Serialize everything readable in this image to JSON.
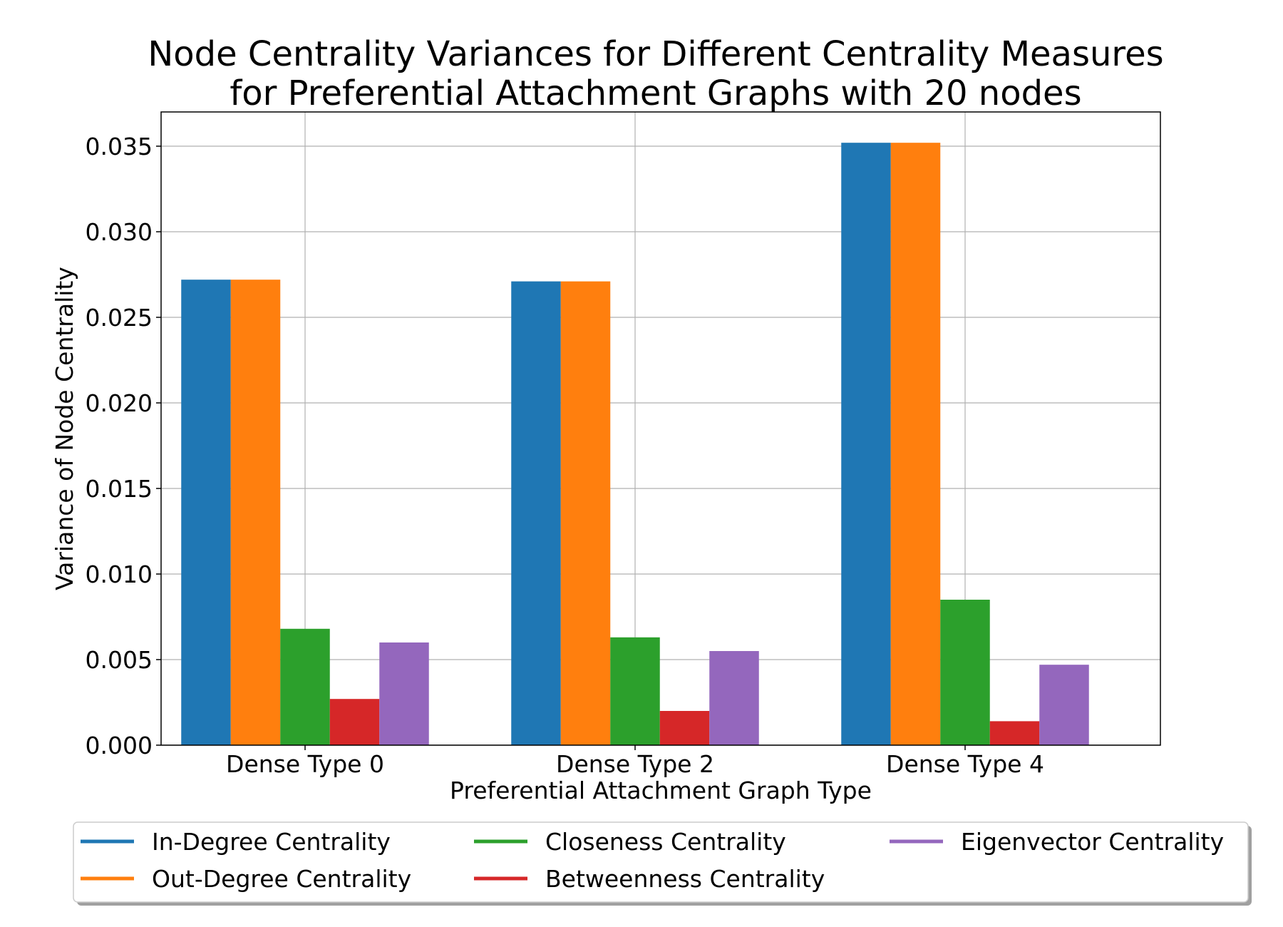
{
  "chart_data": {
    "type": "bar",
    "title": [
      "Node Centrality Variances for Different Centrality Measures",
      "for Preferential Attachment Graphs with 20 nodes"
    ],
    "xlabel": "Preferential Attachment Graph Type",
    "ylabel": "Variance of Node Centrality",
    "categories": [
      "Dense Type 0",
      "Dense Type 2",
      "Dense Type 4"
    ],
    "ylim": [
      0,
      0.037
    ],
    "yticks": [
      0.0,
      0.005,
      0.01,
      0.015,
      0.02,
      0.025,
      0.03,
      0.035
    ],
    "ytick_labels": [
      "0.000",
      "0.005",
      "0.010",
      "0.015",
      "0.020",
      "0.025",
      "0.030",
      "0.035"
    ],
    "grid": true,
    "legend_position": "bottom, below plot, 3 columns",
    "series": [
      {
        "name": "In-Degree Centrality",
        "color": "#1f77b4",
        "values": [
          0.0272,
          0.0271,
          0.0352
        ]
      },
      {
        "name": "Out-Degree Centrality",
        "color": "#ff7f0e",
        "values": [
          0.0272,
          0.0271,
          0.0352
        ]
      },
      {
        "name": "Closeness Centrality",
        "color": "#2ca02c",
        "values": [
          0.0068,
          0.0063,
          0.0085
        ]
      },
      {
        "name": "Betweenness Centrality",
        "color": "#d62728",
        "values": [
          0.0027,
          0.002,
          0.0014
        ]
      },
      {
        "name": "Eigenvector Centrality",
        "color": "#9467bd",
        "values": [
          0.006,
          0.0055,
          0.0047
        ]
      }
    ]
  }
}
